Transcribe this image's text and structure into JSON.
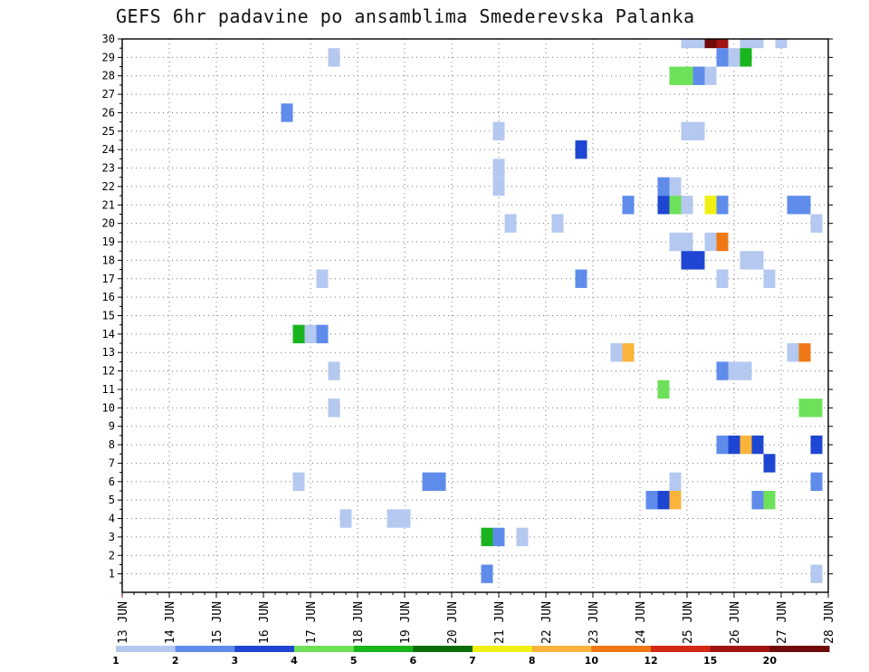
{
  "title": "GEFS 6hr padavine po ansamblima Smederevska Palanka",
  "chart_data": {
    "type": "heatmap",
    "x_label": "",
    "y_label": "",
    "x_ticks": [
      "13 JUN",
      "14 JUN",
      "15 JUN",
      "16 JUN",
      "17 JUN",
      "18 JUN",
      "19 JUN",
      "20 JUN",
      "21 JUN",
      "22 JUN",
      "23 JUN",
      "24 JUN",
      "25 JUN",
      "26 JUN",
      "27 JUN",
      "28 JUN"
    ],
    "x_range_days": [
      13,
      28
    ],
    "y_ticks": [
      1,
      2,
      3,
      4,
      5,
      6,
      7,
      8,
      9,
      10,
      11,
      12,
      13,
      14,
      15,
      16,
      17,
      18,
      19,
      20,
      21,
      22,
      23,
      24,
      25,
      26,
      27,
      28,
      29,
      30
    ],
    "y_range": [
      0,
      30
    ],
    "grid": true,
    "colorbar": {
      "labels": [
        "1",
        "2",
        "3",
        "4",
        "5",
        "6",
        "7",
        "8",
        "10",
        "12",
        "15",
        "20"
      ],
      "colors": [
        "#b4c8f0",
        "#5f8ceb",
        "#1e46d2",
        "#6ee15a",
        "#19b41e",
        "#0a6e0a",
        "#f0f014",
        "#fab43c",
        "#f07814",
        "#d22814",
        "#a01414",
        "#6e0a0a"
      ]
    },
    "cells": [
      {
        "m": 30,
        "d": 25.0,
        "v": 1
      },
      {
        "m": 30,
        "d": 25.25,
        "v": 1
      },
      {
        "m": 30,
        "d": 25.5,
        "v": 20
      },
      {
        "m": 30,
        "d": 25.75,
        "v": 15
      },
      {
        "m": 30,
        "d": 26.25,
        "v": 1
      },
      {
        "m": 30,
        "d": 26.5,
        "v": 1
      },
      {
        "m": 30,
        "d": 27.0,
        "v": 1
      },
      {
        "m": 29,
        "d": 17.5,
        "v": 1
      },
      {
        "m": 29,
        "d": 25.75,
        "v": 2
      },
      {
        "m": 29,
        "d": 26.0,
        "v": 1
      },
      {
        "m": 29,
        "d": 26.25,
        "v": 5
      },
      {
        "m": 28,
        "d": 24.75,
        "v": 4
      },
      {
        "m": 28,
        "d": 25.0,
        "v": 4
      },
      {
        "m": 28,
        "d": 25.25,
        "v": 2
      },
      {
        "m": 28,
        "d": 25.5,
        "v": 1
      },
      {
        "m": 26,
        "d": 16.5,
        "v": 2
      },
      {
        "m": 25,
        "d": 21.0,
        "v": 1
      },
      {
        "m": 25,
        "d": 25.0,
        "v": 1
      },
      {
        "m": 25,
        "d": 25.25,
        "v": 1
      },
      {
        "m": 24,
        "d": 22.75,
        "v": 3
      },
      {
        "m": 23,
        "d": 21.0,
        "v": 1
      },
      {
        "m": 22,
        "d": 21.0,
        "v": 1
      },
      {
        "m": 22,
        "d": 24.5,
        "v": 2
      },
      {
        "m": 22,
        "d": 24.75,
        "v": 1
      },
      {
        "m": 21,
        "d": 23.75,
        "v": 2
      },
      {
        "m": 21,
        "d": 24.5,
        "v": 3
      },
      {
        "m": 21,
        "d": 24.75,
        "v": 4
      },
      {
        "m": 21,
        "d": 25.0,
        "v": 1
      },
      {
        "m": 21,
        "d": 25.5,
        "v": 7
      },
      {
        "m": 21,
        "d": 25.75,
        "v": 2
      },
      {
        "m": 21,
        "d": 27.25,
        "v": 2
      },
      {
        "m": 21,
        "d": 27.5,
        "v": 2
      },
      {
        "m": 20,
        "d": 21.25,
        "v": 1
      },
      {
        "m": 20,
        "d": 22.25,
        "v": 1
      },
      {
        "m": 20,
        "d": 27.75,
        "v": 1
      },
      {
        "m": 19,
        "d": 24.75,
        "v": 1
      },
      {
        "m": 19,
        "d": 25.0,
        "v": 1
      },
      {
        "m": 19,
        "d": 25.5,
        "v": 1
      },
      {
        "m": 19,
        "d": 25.75,
        "v": 10
      },
      {
        "m": 18,
        "d": 25.0,
        "v": 3
      },
      {
        "m": 18,
        "d": 25.25,
        "v": 3
      },
      {
        "m": 18,
        "d": 26.25,
        "v": 1
      },
      {
        "m": 18,
        "d": 26.5,
        "v": 1
      },
      {
        "m": 17,
        "d": 17.25,
        "v": 1
      },
      {
        "m": 17,
        "d": 22.75,
        "v": 2
      },
      {
        "m": 17,
        "d": 25.75,
        "v": 1
      },
      {
        "m": 17,
        "d": 26.75,
        "v": 1
      },
      {
        "m": 14,
        "d": 16.75,
        "v": 5
      },
      {
        "m": 14,
        "d": 17.0,
        "v": 1
      },
      {
        "m": 14,
        "d": 17.25,
        "v": 2
      },
      {
        "m": 13,
        "d": 23.5,
        "v": 1
      },
      {
        "m": 13,
        "d": 23.75,
        "v": 8
      },
      {
        "m": 13,
        "d": 27.25,
        "v": 1
      },
      {
        "m": 13,
        "d": 27.5,
        "v": 10
      },
      {
        "m": 12,
        "d": 17.5,
        "v": 1
      },
      {
        "m": 12,
        "d": 25.75,
        "v": 2
      },
      {
        "m": 12,
        "d": 26.0,
        "v": 1
      },
      {
        "m": 12,
        "d": 26.25,
        "v": 1
      },
      {
        "m": 11,
        "d": 24.5,
        "v": 4
      },
      {
        "m": 10,
        "d": 17.5,
        "v": 1
      },
      {
        "m": 10,
        "d": 27.5,
        "v": 4
      },
      {
        "m": 10,
        "d": 27.75,
        "v": 4
      },
      {
        "m": 8,
        "d": 25.75,
        "v": 2
      },
      {
        "m": 8,
        "d": 26.0,
        "v": 3
      },
      {
        "m": 8,
        "d": 26.25,
        "v": 8
      },
      {
        "m": 8,
        "d": 26.5,
        "v": 3
      },
      {
        "m": 8,
        "d": 27.75,
        "v": 3
      },
      {
        "m": 7,
        "d": 26.75,
        "v": 3
      },
      {
        "m": 6,
        "d": 16.75,
        "v": 1
      },
      {
        "m": 6,
        "d": 19.5,
        "v": 2
      },
      {
        "m": 6,
        "d": 19.75,
        "v": 2
      },
      {
        "m": 6,
        "d": 24.75,
        "v": 1
      },
      {
        "m": 6,
        "d": 27.75,
        "v": 2
      },
      {
        "m": 5,
        "d": 24.25,
        "v": 2
      },
      {
        "m": 5,
        "d": 24.5,
        "v": 3
      },
      {
        "m": 5,
        "d": 24.75,
        "v": 8
      },
      {
        "m": 5,
        "d": 26.5,
        "v": 2
      },
      {
        "m": 5,
        "d": 26.75,
        "v": 4
      },
      {
        "m": 4,
        "d": 17.75,
        "v": 1
      },
      {
        "m": 4,
        "d": 18.75,
        "v": 1
      },
      {
        "m": 4,
        "d": 19.0,
        "v": 1
      },
      {
        "m": 3,
        "d": 20.75,
        "v": 5
      },
      {
        "m": 3,
        "d": 21.0,
        "v": 2
      },
      {
        "m": 3,
        "d": 21.5,
        "v": 1
      },
      {
        "m": 1,
        "d": 20.75,
        "v": 2
      },
      {
        "m": 1,
        "d": 27.75,
        "v": 1
      }
    ]
  }
}
